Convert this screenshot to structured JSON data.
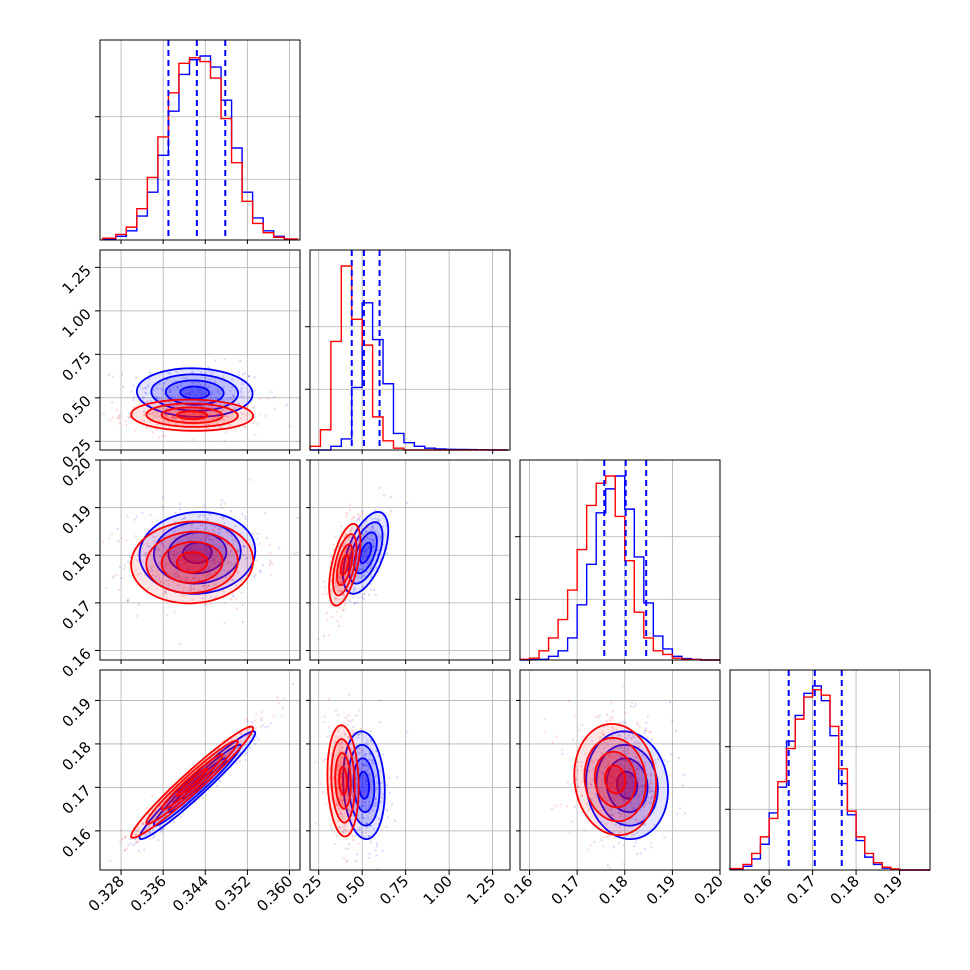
{
  "colors": {
    "series_a": "#0000ff",
    "series_b": "#ff0000",
    "grid": "#b0b0b0",
    "frame": "#000000"
  },
  "chart_data": {
    "type": "scatter",
    "layout": "corner-plot",
    "title": "",
    "grid": true,
    "legend": "none",
    "series": [
      {
        "color": "#0000ff"
      },
      {
        "color": "#ff0000"
      }
    ],
    "parameters": [
      {
        "range": [
          0.324,
          0.362
        ],
        "ticks": [
          0.328,
          0.336,
          0.344,
          0.352,
          0.36
        ],
        "tick_labels": [
          "0.328",
          "0.336",
          "0.344",
          "0.352",
          "0.360"
        ]
      },
      {
        "range": [
          0.2,
          1.35
        ],
        "ticks": [
          0.25,
          0.5,
          0.75,
          1.0,
          1.25
        ],
        "tick_labels": [
          "0.25",
          "0.50",
          "0.75",
          "1.00",
          "1.25"
        ]
      },
      {
        "range": [
          0.158,
          0.2
        ],
        "ticks": [
          0.16,
          0.17,
          0.18,
          0.19,
          0.2
        ],
        "tick_labels": [
          "0.16",
          "0.17",
          "0.18",
          "0.19",
          "0.20"
        ]
      },
      {
        "range": [
          0.151,
          0.197
        ],
        "ticks": [
          0.16,
          0.17,
          0.18,
          0.19
        ],
        "tick_labels": [
          "0.16",
          "0.17",
          "0.18",
          "0.19"
        ]
      }
    ],
    "quantile_lines": [
      {
        "parameter": 0,
        "values": [
          0.337,
          0.3424,
          0.3478
        ]
      },
      {
        "parameter": 1,
        "values": [
          0.44,
          0.51,
          0.6
        ]
      },
      {
        "parameter": 2,
        "values": [
          0.1757,
          0.1802,
          0.1845
        ]
      },
      {
        "parameter": 3,
        "values": [
          0.1645,
          0.1705,
          0.1767
        ]
      }
    ],
    "marginals": [
      {
        "parameter": 0,
        "bin_edges": [
          0.3245,
          0.327,
          0.329,
          0.331,
          0.333,
          0.335,
          0.337,
          0.339,
          0.341,
          0.343,
          0.345,
          0.347,
          0.349,
          0.351,
          0.353,
          0.355,
          0.357,
          0.359,
          0.3615
        ],
        "series_a": [
          0.005,
          0.02,
          0.05,
          0.13,
          0.26,
          0.46,
          0.7,
          0.9,
          0.98,
          1.0,
          0.94,
          0.76,
          0.5,
          0.26,
          0.12,
          0.05,
          0.02,
          0.005
        ],
        "series_b": [
          0.01,
          0.03,
          0.07,
          0.17,
          0.34,
          0.56,
          0.8,
          0.96,
          0.99,
          0.97,
          0.88,
          0.66,
          0.42,
          0.21,
          0.09,
          0.04,
          0.015,
          0.005
        ]
      },
      {
        "parameter": 1,
        "bin_edges": [
          0.2,
          0.26,
          0.32,
          0.38,
          0.44,
          0.5,
          0.56,
          0.62,
          0.68,
          0.74,
          0.8,
          0.86,
          0.92,
          0.98,
          1.04,
          1.1,
          1.16,
          1.22,
          1.28,
          1.34
        ],
        "series_a": [
          0.0,
          0.0,
          0.02,
          0.06,
          0.34,
          0.8,
          0.6,
          0.36,
          0.09,
          0.04,
          0.02,
          0.01,
          0.006,
          0.004,
          0.003,
          0.002,
          0.001,
          0.0,
          0.0
        ],
        "series_b": [
          0.02,
          0.11,
          0.59,
          1.0,
          0.71,
          0.57,
          0.18,
          0.05,
          0.01,
          0.0,
          0.0,
          0.0,
          0.0,
          0.0,
          0.0,
          0.0,
          0.0,
          0.0,
          0.0
        ]
      },
      {
        "parameter": 2,
        "bin_edges": [
          0.158,
          0.16,
          0.162,
          0.164,
          0.166,
          0.168,
          0.17,
          0.172,
          0.174,
          0.176,
          0.178,
          0.18,
          0.182,
          0.184,
          0.186,
          0.188,
          0.19,
          0.192,
          0.194,
          0.196,
          0.2
        ],
        "series_a": [
          0.0,
          0.002,
          0.004,
          0.02,
          0.05,
          0.12,
          0.3,
          0.52,
          0.8,
          0.93,
          1.0,
          0.82,
          0.56,
          0.31,
          0.13,
          0.06,
          0.02,
          0.008,
          0.003,
          0.0
        ],
        "series_b": [
          0.004,
          0.01,
          0.05,
          0.12,
          0.22,
          0.38,
          0.6,
          0.84,
          0.96,
          1.0,
          0.78,
          0.54,
          0.26,
          0.12,
          0.05,
          0.03,
          0.01,
          0.004,
          0.002,
          0.0
        ]
      },
      {
        "parameter": 3,
        "bin_edges": [
          0.151,
          0.154,
          0.156,
          0.158,
          0.16,
          0.162,
          0.164,
          0.166,
          0.168,
          0.17,
          0.172,
          0.174,
          0.176,
          0.178,
          0.18,
          0.182,
          0.184,
          0.186,
          0.188,
          0.19,
          0.197
        ],
        "series_a": [
          0.005,
          0.02,
          0.06,
          0.14,
          0.31,
          0.45,
          0.7,
          0.84,
          0.96,
          1.0,
          0.92,
          0.73,
          0.47,
          0.3,
          0.16,
          0.07,
          0.03,
          0.01,
          0.005,
          0.0
        ],
        "series_b": [
          0.008,
          0.03,
          0.09,
          0.18,
          0.28,
          0.48,
          0.66,
          0.82,
          0.94,
          0.98,
          0.95,
          0.78,
          0.55,
          0.32,
          0.18,
          0.09,
          0.04,
          0.015,
          0.005,
          0.0
        ]
      }
    ],
    "joint_panels": [
      {
        "x_parameter": 0,
        "y_parameter": 1,
        "series_a": {
          "center": [
            0.342,
            0.53
          ],
          "sigma": [
            0.0055,
            0.07
          ],
          "correlation": -0.05
        },
        "series_b": {
          "center": [
            0.3415,
            0.4
          ],
          "sigma": [
            0.0058,
            0.045
          ],
          "correlation": -0.05
        }
      },
      {
        "x_parameter": 0,
        "y_parameter": 2,
        "series_a": {
          "center": [
            0.3425,
            0.1805
          ],
          "sigma": [
            0.0055,
            0.0043
          ],
          "correlation": 0.05
        },
        "series_b": {
          "center": [
            0.3415,
            0.1785
          ],
          "sigma": [
            0.0058,
            0.0043
          ],
          "correlation": 0.05
        }
      },
      {
        "x_parameter": 1,
        "y_parameter": 2,
        "series_a": {
          "center": [
            0.52,
            0.1805
          ],
          "sigma": [
            0.065,
            0.0043
          ],
          "correlation": 0.55
        },
        "series_b": {
          "center": [
            0.4,
            0.178
          ],
          "sigma": [
            0.045,
            0.0043
          ],
          "correlation": 0.55
        }
      },
      {
        "x_parameter": 0,
        "y_parameter": 3,
        "series_a": {
          "center": [
            0.3425,
            0.1705
          ],
          "sigma": [
            0.0055,
            0.0062
          ],
          "correlation": 0.97
        },
        "series_b": {
          "center": [
            0.3415,
            0.1712
          ],
          "sigma": [
            0.0058,
            0.0064
          ],
          "correlation": 0.97
        }
      },
      {
        "x_parameter": 1,
        "y_parameter": 3,
        "series_a": {
          "center": [
            0.51,
            0.1705
          ],
          "sigma": [
            0.06,
            0.0062
          ],
          "correlation": -0.12
        },
        "series_b": {
          "center": [
            0.39,
            0.1715
          ],
          "sigma": [
            0.045,
            0.0064
          ],
          "correlation": -0.12
        }
      },
      {
        "x_parameter": 2,
        "y_parameter": 3,
        "series_a": {
          "center": [
            0.1805,
            0.1705
          ],
          "sigma": [
            0.0043,
            0.0062
          ],
          "correlation": -0.08
        },
        "series_b": {
          "center": [
            0.178,
            0.1718
          ],
          "sigma": [
            0.0043,
            0.0064
          ],
          "correlation": -0.08
        }
      }
    ]
  }
}
